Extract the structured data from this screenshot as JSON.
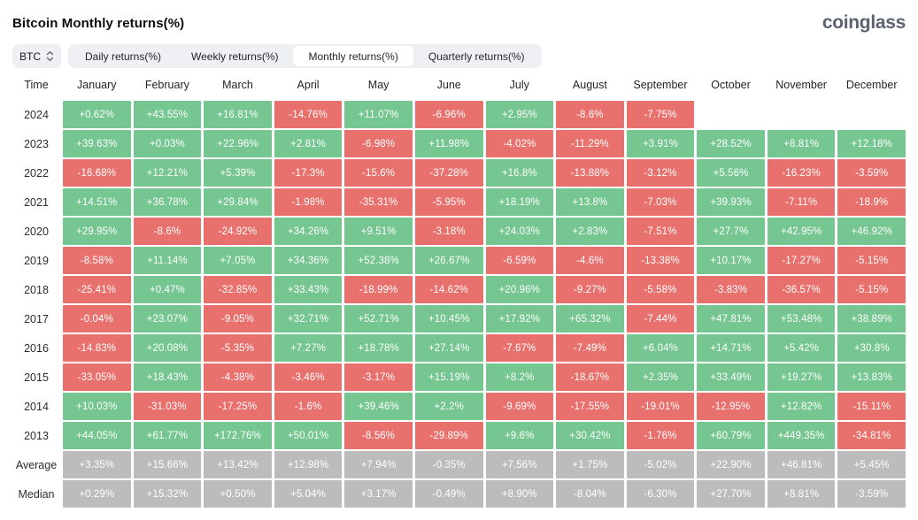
{
  "page": {
    "title": "Bitcoin Monthly returns(%)",
    "logo": "coinglass"
  },
  "controls": {
    "symbol_select": {
      "value": "BTC"
    },
    "tabs": [
      {
        "label": "Daily returns(%)",
        "active": false
      },
      {
        "label": "Weekly returns(%)",
        "active": false
      },
      {
        "label": "Monthly returns(%)",
        "active": true
      },
      {
        "label": "Quarterly returns(%)",
        "active": false
      }
    ]
  },
  "colors": {
    "positive": "#75c690",
    "negative": "#e8716e",
    "neutral": "#bcbcbc"
  },
  "chart_data": {
    "type": "heatmap",
    "title": "Bitcoin Monthly returns(%)",
    "legend_note": "green = positive monthly return, red = negative, gray = Average/Median summary rows",
    "columns": [
      "Time",
      "January",
      "February",
      "March",
      "April",
      "May",
      "June",
      "July",
      "August",
      "September",
      "October",
      "November",
      "December"
    ],
    "rows": [
      {
        "label": "2024",
        "neutral": false,
        "values": [
          "+0.62%",
          "+43.55%",
          "+16.81%",
          "-14.76%",
          "+11.07%",
          "-6.96%",
          "+2.95%",
          "-8.6%",
          "-7.75%",
          "",
          "",
          ""
        ]
      },
      {
        "label": "2023",
        "neutral": false,
        "values": [
          "+39.63%",
          "+0.03%",
          "+22.96%",
          "+2.81%",
          "-6.98%",
          "+11.98%",
          "-4.02%",
          "-11.29%",
          "+3.91%",
          "+28.52%",
          "+8.81%",
          "+12.18%"
        ]
      },
      {
        "label": "2022",
        "neutral": false,
        "values": [
          "-16.68%",
          "+12.21%",
          "+5.39%",
          "-17.3%",
          "-15.6%",
          "-37.28%",
          "+16.8%",
          "-13.88%",
          "-3.12%",
          "+5.56%",
          "-16.23%",
          "-3.59%"
        ]
      },
      {
        "label": "2021",
        "neutral": false,
        "values": [
          "+14.51%",
          "+36.78%",
          "+29.84%",
          "-1.98%",
          "-35.31%",
          "-5.95%",
          "+18.19%",
          "+13.8%",
          "-7.03%",
          "+39.93%",
          "-7.11%",
          "-18.9%"
        ]
      },
      {
        "label": "2020",
        "neutral": false,
        "values": [
          "+29.95%",
          "-8.6%",
          "-24.92%",
          "+34.26%",
          "+9.51%",
          "-3.18%",
          "+24.03%",
          "+2.83%",
          "-7.51%",
          "+27.7%",
          "+42.95%",
          "+46.92%"
        ]
      },
      {
        "label": "2019",
        "neutral": false,
        "values": [
          "-8.58%",
          "+11.14%",
          "+7.05%",
          "+34.36%",
          "+52.38%",
          "+26.67%",
          "-6.59%",
          "-4.6%",
          "-13.38%",
          "+10.17%",
          "-17.27%",
          "-5.15%"
        ]
      },
      {
        "label": "2018",
        "neutral": false,
        "values": [
          "-25.41%",
          "+0.47%",
          "-32.85%",
          "+33.43%",
          "-18.99%",
          "-14.62%",
          "+20.96%",
          "-9.27%",
          "-5.58%",
          "-3.83%",
          "-36.57%",
          "-5.15%"
        ]
      },
      {
        "label": "2017",
        "neutral": false,
        "values": [
          "-0.04%",
          "+23.07%",
          "-9.05%",
          "+32.71%",
          "+52.71%",
          "+10.45%",
          "+17.92%",
          "+65.32%",
          "-7.44%",
          "+47.81%",
          "+53.48%",
          "+38.89%"
        ]
      },
      {
        "label": "2016",
        "neutral": false,
        "values": [
          "-14.83%",
          "+20.08%",
          "-5.35%",
          "+7.27%",
          "+18.78%",
          "+27.14%",
          "-7.67%",
          "-7.49%",
          "+6.04%",
          "+14.71%",
          "+5.42%",
          "+30.8%"
        ]
      },
      {
        "label": "2015",
        "neutral": false,
        "values": [
          "-33.05%",
          "+18.43%",
          "-4.38%",
          "-3.46%",
          "-3.17%",
          "+15.19%",
          "+8.2%",
          "-18.67%",
          "+2.35%",
          "+33.49%",
          "+19.27%",
          "+13.83%"
        ]
      },
      {
        "label": "2014",
        "neutral": false,
        "values": [
          "+10.03%",
          "-31.03%",
          "-17.25%",
          "-1.6%",
          "+39.46%",
          "+2.2%",
          "-9.69%",
          "-17.55%",
          "-19.01%",
          "-12.95%",
          "+12.82%",
          "-15.11%"
        ]
      },
      {
        "label": "2013",
        "neutral": false,
        "values": [
          "+44.05%",
          "+61.77%",
          "+172.76%",
          "+50.01%",
          "-8.56%",
          "-29.89%",
          "+9.6%",
          "+30.42%",
          "-1.76%",
          "+60.79%",
          "+449.35%",
          "-34.81%"
        ]
      },
      {
        "label": "Average",
        "neutral": true,
        "values": [
          "+3.35%",
          "+15.66%",
          "+13.42%",
          "+12.98%",
          "+7.94%",
          "-0.35%",
          "+7.56%",
          "+1.75%",
          "-5.02%",
          "+22.90%",
          "+46.81%",
          "+5.45%"
        ]
      },
      {
        "label": "Median",
        "neutral": true,
        "values": [
          "+0.29%",
          "+15.32%",
          "+0.50%",
          "+5.04%",
          "+3.17%",
          "-0.49%",
          "+8.90%",
          "-8.04%",
          "-6.30%",
          "+27.70%",
          "+8.81%",
          "-3.59%"
        ]
      }
    ]
  }
}
